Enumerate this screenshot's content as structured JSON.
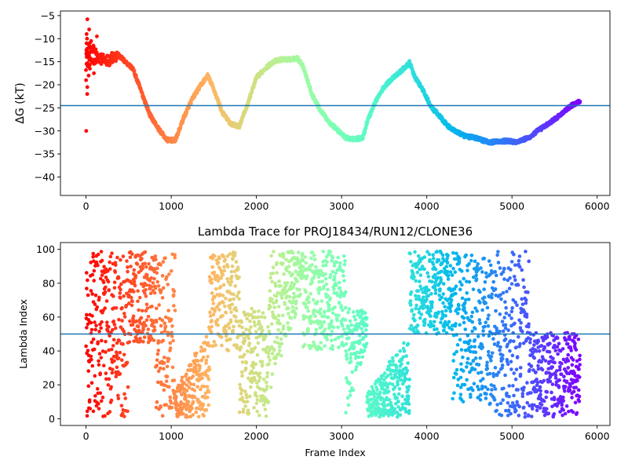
{
  "chart_data": [
    {
      "type": "scatter",
      "title": "",
      "xlabel": "",
      "ylabel": "ΔG (kT)",
      "xlim": [
        -300,
        6150
      ],
      "ylim": [
        -44,
        -4
      ],
      "xticks": [
        0,
        1000,
        2000,
        3000,
        4000,
        5000,
        6000
      ],
      "yticks": [
        -40,
        -35,
        -30,
        -25,
        -20,
        -15,
        -10,
        -5
      ],
      "hline": -24.5,
      "hline_color": "#1f77b4",
      "colormap": "rainbow (red at frame 0 → violet at last frame)",
      "n_points": 5800,
      "trace_knots": {
        "x": [
          0,
          40,
          100,
          200,
          300,
          380,
          450,
          550,
          650,
          750,
          850,
          950,
          1050,
          1150,
          1250,
          1350,
          1430,
          1500,
          1600,
          1700,
          1800,
          1900,
          2000,
          2100,
          2200,
          2300,
          2400,
          2480,
          2550,
          2650,
          2750,
          2850,
          2950,
          3050,
          3150,
          3250,
          3300,
          3400,
          3500,
          3600,
          3700,
          3800,
          3850,
          3950,
          4050,
          4150,
          4250,
          4350,
          4450,
          4550,
          4650,
          4750,
          4850,
          4950,
          5050,
          5150,
          5200,
          5300,
          5400,
          5500,
          5600,
          5700,
          5800
        ],
        "y": [
          -14,
          -13,
          -14,
          -14.5,
          -14.5,
          -13.5,
          -14.8,
          -16.5,
          -21.5,
          -26.5,
          -29.5,
          -32,
          -32,
          -27,
          -23,
          -20,
          -18,
          -21,
          -26,
          -28.5,
          -29,
          -24,
          -18.5,
          -16.5,
          -15,
          -14.5,
          -14.5,
          -14.2,
          -16,
          -22,
          -25.5,
          -28,
          -29.8,
          -31.5,
          -31.8,
          -31.5,
          -28,
          -23.5,
          -20.5,
          -18.5,
          -17,
          -15.2,
          -18,
          -21,
          -24.8,
          -26.8,
          -29,
          -30.2,
          -31.2,
          -31.4,
          -32,
          -32.5,
          -32.2,
          -32.2,
          -32.4,
          -31.8,
          -31.5,
          -30,
          -28.8,
          -27.5,
          -26,
          -24.5,
          -23.5
        ]
      },
      "early_scatter_values": [
        -5.8,
        -9,
        -10,
        -11,
        -12.5,
        -14,
        -16,
        -19,
        -20.5,
        -22,
        -30,
        -9.5,
        -13,
        -15,
        -17.5,
        -8,
        -11.5,
        -18,
        -10.5,
        -16.5
      ],
      "early_scatter_range": [
        0,
        350
      ]
    },
    {
      "type": "scatter",
      "title": "Lambda Trace for PROJ18434/RUN12/CLONE36",
      "xlabel": "Frame Index",
      "ylabel": "Lambda Index",
      "xlim": [
        -300,
        6150
      ],
      "ylim": [
        -4,
        104
      ],
      "xticks": [
        0,
        1000,
        2000,
        3000,
        4000,
        5000,
        6000
      ],
      "yticks": [
        0,
        20,
        40,
        60,
        80,
        100
      ],
      "hline": 50,
      "hline_color": "#1f77b4",
      "colormap": "rainbow (red at frame 0 → violet at last frame)",
      "n_points": 5800,
      "segments": [
        {
          "x_range": [
            0,
            120
          ],
          "y_range": [
            1,
            99
          ]
        },
        {
          "x_range": [
            120,
            500
          ],
          "y_range": [
            1,
            99
          ]
        },
        {
          "x_range": [
            500,
            820
          ],
          "y_range": [
            45,
            99
          ]
        },
        {
          "x_range": [
            820,
            1050
          ],
          "y_range": [
            1,
            99
          ]
        },
        {
          "x_range": [
            1050,
            1450
          ],
          "y_range": [
            1,
            55
          ]
        },
        {
          "x_range": [
            1450,
            1800
          ],
          "y_range": [
            40,
            99
          ]
        },
        {
          "x_range": [
            1800,
            2150
          ],
          "y_range": [
            1,
            65
          ]
        },
        {
          "x_range": [
            2150,
            2550
          ],
          "y_range": [
            15,
            99
          ]
        },
        {
          "x_range": [
            2550,
            3050
          ],
          "y_range": [
            40,
            99
          ]
        },
        {
          "x_range": [
            3050,
            3300
          ],
          "y_range": [
            1,
            65
          ]
        },
        {
          "x_range": [
            3300,
            3800
          ],
          "y_range": [
            1,
            50
          ]
        },
        {
          "x_range": [
            3800,
            4300
          ],
          "y_range": [
            50,
            99
          ]
        },
        {
          "x_range": [
            4300,
            4700
          ],
          "y_range": [
            10,
            99
          ]
        },
        {
          "x_range": [
            4700,
            5200
          ],
          "y_range": [
            1,
            99
          ]
        },
        {
          "x_range": [
            5200,
            5800
          ],
          "y_range": [
            1,
            51
          ]
        }
      ]
    }
  ]
}
